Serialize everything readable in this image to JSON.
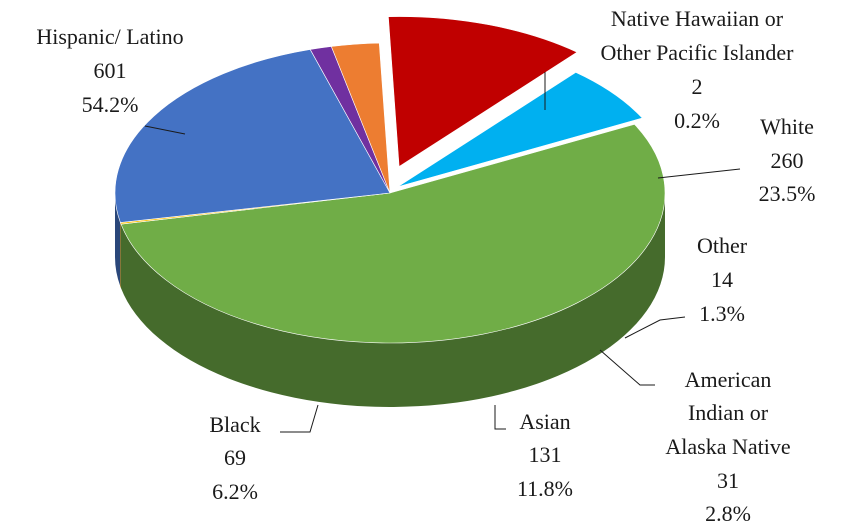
{
  "chart_data": {
    "type": "pie",
    "style": "3d-exploded-pie",
    "title": "",
    "slices": [
      {
        "name": "Hispanic/ Latino",
        "value": 601,
        "percent": "54.2%",
        "color": "#70AD47"
      },
      {
        "name": "Native Hawaiian or Other Pacific Islander",
        "value": 2,
        "percent": "0.2%",
        "color": "#FFC000"
      },
      {
        "name": "White",
        "value": 260,
        "percent": "23.5%",
        "color": "#4472C4"
      },
      {
        "name": "Other",
        "value": 14,
        "percent": "1.3%",
        "color": "#7030A0"
      },
      {
        "name": "American Indian or Alaska Native",
        "value": 31,
        "percent": "2.8%",
        "color": "#ED7D31"
      },
      {
        "name": "Asian",
        "value": 131,
        "percent": "11.8%",
        "color": "#C00000"
      },
      {
        "name": "Black",
        "value": 69,
        "percent": "6.2%",
        "color": "#00B0F0"
      }
    ]
  },
  "labels": {
    "hispanic": {
      "l1": "Hispanic/ Latino",
      "v": "601",
      "p": "54.2%"
    },
    "nhpi": {
      "l1": "Native Hawaiian or",
      "l2": "Other Pacific Islander",
      "v": "2",
      "p": "0.2%"
    },
    "white": {
      "l1": "White",
      "v": "260",
      "p": "23.5%"
    },
    "other": {
      "l1": "Other",
      "v": "14",
      "p": "1.3%"
    },
    "aian": {
      "l1": "American",
      "l2": "Indian or",
      "l3": "Alaska Native",
      "v": "31",
      "p": "2.8%"
    },
    "asian": {
      "l1": "Asian",
      "v": "131",
      "p": "11.8%"
    },
    "black": {
      "l1": "Black",
      "v": "69",
      "p": "6.2%"
    }
  }
}
